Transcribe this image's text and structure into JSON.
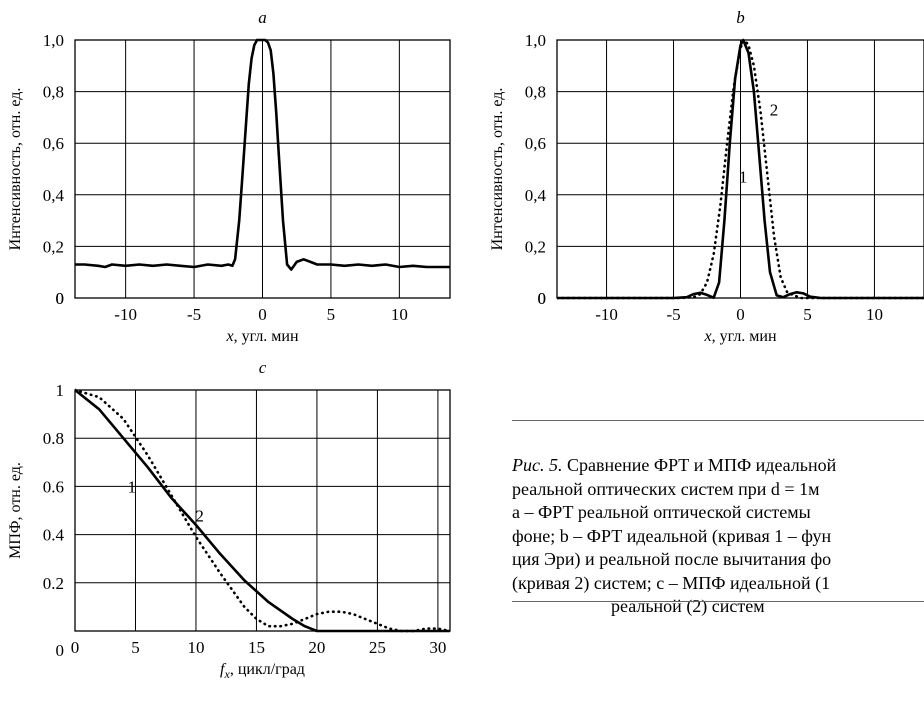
{
  "figure": {
    "caption_label": "Рис. 5.",
    "caption_lines": [
      "Сравнение ФРТ и МПФ идеальной",
      "реальной оптических систем при d = 1м",
      "a – ФРТ реальной оптической системы",
      "фоне; b – ФРТ идеальной (кривая 1 – фун",
      "ция Эри) и реальной после вычитания фо",
      "(кривая 2) систем; c – МПФ идеальной (1",
      "реальной (2) систем"
    ]
  },
  "chart_data": [
    {
      "id": "a",
      "type": "line",
      "title": "a",
      "xlabel": "x, угл. мин",
      "ylabel": "Интенсивность, отн. ед.",
      "xlim": [
        -13.7,
        13.7
      ],
      "ylim": [
        0,
        1.0
      ],
      "xticks": [
        -10,
        -5,
        0,
        5,
        10
      ],
      "xtick_labels": [
        "-10",
        "-5",
        "0",
        "5",
        "10"
      ],
      "yticks": [
        0,
        0.2,
        0.4,
        0.6,
        0.8,
        1.0
      ],
      "ytick_labels": [
        "0",
        "0,2",
        "0,4",
        "0,6",
        "0,8",
        "1,0"
      ],
      "grid": true,
      "series": [
        {
          "style": "solid",
          "x": [
            -13.7,
            -13,
            -12,
            -11.5,
            -11,
            -10,
            -9,
            -8,
            -7,
            -6,
            -5,
            -4,
            -3,
            -2.5,
            -2.2,
            -2,
            -1.7,
            -1.5,
            -1.2,
            -1,
            -0.8,
            -0.6,
            -0.4,
            -0.2,
            0,
            0.2,
            0.4,
            0.6,
            0.8,
            1,
            1.2,
            1.5,
            1.8,
            2.1,
            2.5,
            3,
            3.5,
            4,
            5,
            6,
            7,
            8,
            9,
            10,
            11,
            12,
            13,
            13.7
          ],
          "y": [
            0.13,
            0.13,
            0.125,
            0.12,
            0.13,
            0.125,
            0.13,
            0.125,
            0.13,
            0.125,
            0.12,
            0.13,
            0.125,
            0.13,
            0.125,
            0.15,
            0.3,
            0.45,
            0.68,
            0.83,
            0.93,
            0.98,
            1.0,
            1.0,
            1.0,
            1.0,
            0.99,
            0.96,
            0.87,
            0.72,
            0.55,
            0.3,
            0.13,
            0.11,
            0.14,
            0.15,
            0.14,
            0.13,
            0.13,
            0.125,
            0.13,
            0.125,
            0.13,
            0.12,
            0.125,
            0.12,
            0.12,
            0.12
          ]
        }
      ]
    },
    {
      "id": "b",
      "type": "line",
      "title": "b",
      "xlabel": "x, угл. мин",
      "ylabel": "Интенсивность, отн. ед.",
      "xlim": [
        -13.7,
        13.7
      ],
      "ylim": [
        0,
        1.0
      ],
      "xticks": [
        -10,
        -5,
        0,
        5,
        10
      ],
      "xtick_labels": [
        "-10",
        "-5",
        "0",
        "5",
        "10"
      ],
      "yticks": [
        0,
        0.2,
        0.4,
        0.6,
        0.8,
        1.0
      ],
      "ytick_labels": [
        "0",
        "0,2",
        "0,4",
        "0,6",
        "0,8",
        "1,0"
      ],
      "grid": true,
      "annotations": [
        {
          "text": "1",
          "x": 0.2,
          "y": 0.47
        },
        {
          "text": "2",
          "x": 2.5,
          "y": 0.73
        }
      ],
      "series": [
        {
          "name": "1",
          "style": "solid",
          "x": [
            -13.7,
            -5,
            -4,
            -3.5,
            -3,
            -2.5,
            -2,
            -1.6,
            -1.2,
            -0.8,
            -0.4,
            0,
            0.2,
            0.6,
            1.0,
            1.4,
            1.8,
            2.2,
            2.7,
            3.2,
            3.7,
            4.2,
            4.7,
            5.2,
            6,
            13.7
          ],
          "y": [
            0,
            0,
            0.003,
            0.015,
            0.02,
            0.012,
            0.001,
            0.06,
            0.3,
            0.6,
            0.85,
            0.98,
            1.0,
            0.95,
            0.8,
            0.55,
            0.3,
            0.1,
            0.01,
            0.003,
            0.015,
            0.022,
            0.018,
            0.005,
            0,
            0
          ]
        },
        {
          "name": "2",
          "style": "dotted",
          "x": [
            -13.7,
            -4.5,
            -3.5,
            -3,
            -2.5,
            -2,
            -1.5,
            -1,
            -0.5,
            0,
            0.3,
            0.6,
            1.0,
            1.5,
            2.0,
            2.5,
            3.0,
            3.5,
            4.5,
            13.7
          ],
          "y": [
            0,
            0,
            0.003,
            0.015,
            0.06,
            0.17,
            0.36,
            0.6,
            0.82,
            0.97,
            1.0,
            0.98,
            0.9,
            0.72,
            0.48,
            0.24,
            0.08,
            0.02,
            0,
            0
          ]
        }
      ]
    },
    {
      "id": "c",
      "type": "line",
      "title": "c",
      "xlabel": "f_x, цикл/град",
      "ylabel": "МПФ, отн. ед.",
      "xlim": [
        0,
        31
      ],
      "ylim": [
        0,
        1.0
      ],
      "xticks": [
        0,
        5,
        10,
        15,
        20,
        25,
        30
      ],
      "xtick_labels": [
        "0",
        "5",
        "10",
        "15",
        "20",
        "25",
        "30"
      ],
      "yticks": [
        0.2,
        0.4,
        0.6,
        0.8,
        1.0
      ],
      "ytick_labels": [
        "0.2",
        "0.4",
        "0.6",
        "0.8",
        "1"
      ],
      "grid": true,
      "annotations": [
        {
          "text": "1",
          "x": 4.7,
          "y": 0.6
        },
        {
          "text": "2",
          "x": 10.3,
          "y": 0.48
        }
      ],
      "series": [
        {
          "name": "1",
          "style": "solid",
          "x": [
            0,
            2,
            4,
            6,
            8,
            10,
            12,
            14,
            16,
            18,
            19,
            20,
            31
          ],
          "y": [
            1.0,
            0.92,
            0.8,
            0.68,
            0.55,
            0.44,
            0.32,
            0.21,
            0.12,
            0.05,
            0.02,
            0.0,
            0.0
          ]
        },
        {
          "name": "2",
          "style": "dotted",
          "x": [
            0,
            2,
            4,
            6,
            8,
            10,
            12,
            14,
            15,
            16,
            17,
            18,
            19,
            20,
            21,
            22,
            23,
            24,
            25,
            26,
            27,
            28,
            29,
            30,
            31
          ],
          "y": [
            1.0,
            0.97,
            0.88,
            0.73,
            0.56,
            0.39,
            0.24,
            0.1,
            0.05,
            0.02,
            0.02,
            0.03,
            0.05,
            0.07,
            0.08,
            0.08,
            0.07,
            0.05,
            0.03,
            0.01,
            0.0,
            0.0,
            0.01,
            0.01,
            0.0
          ]
        }
      ]
    }
  ]
}
